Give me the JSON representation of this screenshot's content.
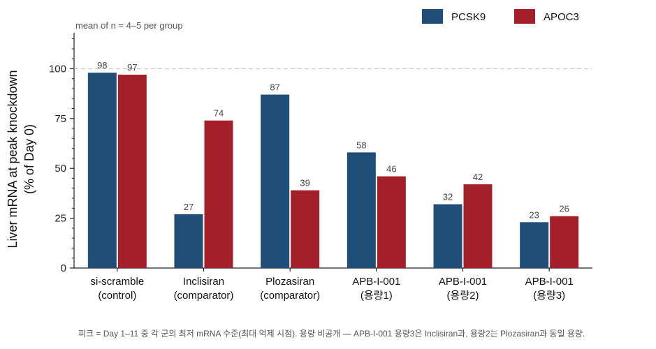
{
  "chart_data": {
    "type": "bar",
    "subtitle": "mean of n = 4–5 per group",
    "ylabel_line1": "Liver mRNA at peak knockdown",
    "ylabel_line2": "(% of Day 0)",
    "categories": [
      [
        "si-scramble",
        "(control)"
      ],
      [
        "Inclisiran",
        "(comparator)"
      ],
      [
        "Plozasiran",
        "(comparator)"
      ],
      [
        "APB-I-001",
        "(용량1)"
      ],
      [
        "APB-I-001",
        "(용량2)"
      ],
      [
        "APB-I-001",
        "(용량3)"
      ]
    ],
    "series": [
      {
        "name": "PCSK9",
        "color": "#1f4e79",
        "values": [
          98,
          27,
          87,
          58,
          32,
          23
        ]
      },
      {
        "name": "APOC3",
        "color": "#a3202a",
        "values": [
          97,
          74,
          39,
          46,
          42,
          26
        ]
      }
    ],
    "ylim": [
      0,
      118
    ],
    "yticks": [
      0,
      25,
      50,
      75,
      100
    ],
    "reference_line": 100,
    "legend_position": "top-right",
    "grid": false,
    "footnote": "피크 = Day 1–11 중 각 군의 최저 mRNA 수준(최대 억제 시점). 용량 비공개 — APB-I-001 용량3은 Inclisiran과, 용량2는 Plozasiran과 동일 용량."
  }
}
